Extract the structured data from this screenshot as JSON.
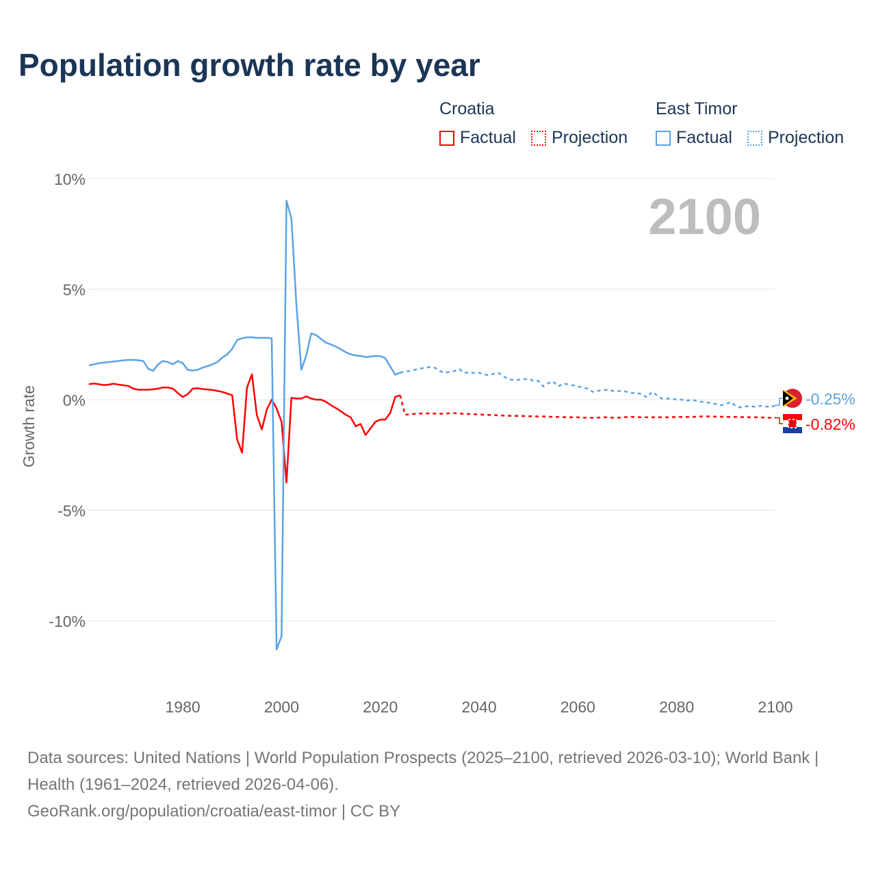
{
  "title": "Population growth rate by year",
  "legend": {
    "groups": [
      {
        "name": "Croatia",
        "color": "#ff0000",
        "factual": "Factual",
        "projection": "Projection"
      },
      {
        "name": "East Timor",
        "color": "#5aa2e6",
        "factual": "Factual",
        "projection": "Projection"
      }
    ]
  },
  "chart_data": {
    "type": "line",
    "title": "Population growth rate by year",
    "xlabel": "",
    "ylabel": "Growth rate",
    "xlim": [
      1961,
      2100
    ],
    "ylim": [
      -12.5,
      10
    ],
    "xticks": [
      1980,
      2000,
      2020,
      2040,
      2060,
      2080,
      2100
    ],
    "yticks": [
      {
        "v": 10,
        "label": "10%"
      },
      {
        "v": 5,
        "label": "5%"
      },
      {
        "v": 0,
        "label": "0%"
      },
      {
        "v": -5,
        "label": "-5%"
      },
      {
        "v": -10,
        "label": "-10%"
      }
    ],
    "grid": true,
    "current_year_label": "2100",
    "series": [
      {
        "name": "Croatia",
        "color": "#ff0000",
        "end_label": "-0.82%",
        "factual_start": 1961,
        "factual": [
          0.7,
          0.73,
          0.7,
          0.66,
          0.68,
          0.72,
          0.68,
          0.65,
          0.62,
          0.5,
          0.45,
          0.45,
          0.45,
          0.47,
          0.5,
          0.55,
          0.55,
          0.5,
          0.3,
          0.12,
          0.25,
          0.5,
          0.52,
          0.48,
          0.46,
          0.44,
          0.4,
          0.35,
          0.28,
          0.2,
          -1.8,
          -2.4,
          0.55,
          1.15,
          -0.7,
          -1.35,
          -0.45,
          0.0,
          -0.4,
          -1.0,
          -3.75,
          0.08,
          0.05,
          0.05,
          0.15,
          0.05,
          0.0,
          0.0,
          -0.1,
          -0.25,
          -0.38,
          -0.52,
          -0.68,
          -0.8,
          -1.2,
          -1.1,
          -1.6,
          -1.3,
          -1.0,
          -0.9,
          -0.9,
          -0.6,
          0.12,
          0.2
        ],
        "projection_start": 2025,
        "projection": [
          -0.68,
          -0.66,
          -0.64,
          -0.63,
          -0.63,
          -0.62,
          -0.63,
          -0.64,
          -0.63,
          -0.62,
          -0.61,
          -0.62,
          -0.65,
          -0.65,
          -0.66,
          -0.67,
          -0.68,
          -0.69,
          -0.7,
          -0.71,
          -0.72,
          -0.73,
          -0.73,
          -0.74,
          -0.74,
          -0.75,
          -0.75,
          -0.76,
          -0.76,
          -0.77,
          -0.78,
          -0.78,
          -0.79,
          -0.8,
          -0.8,
          -0.8,
          -0.81,
          -0.81,
          -0.82,
          -0.81,
          -0.8,
          -0.8,
          -0.81,
          -0.82,
          -0.8,
          -0.79,
          -0.78,
          -0.79,
          -0.8,
          -0.8,
          -0.8,
          -0.8,
          -0.8,
          -0.8,
          -0.79,
          -0.79,
          -0.78,
          -0.78,
          -0.78,
          -0.77,
          -0.76,
          -0.76,
          -0.76,
          -0.77,
          -0.77,
          -0.78,
          -0.78,
          -0.78,
          -0.79,
          -0.79,
          -0.8,
          -0.8,
          -0.8,
          -0.81,
          -0.82,
          -0.82
        ]
      },
      {
        "name": "East Timor",
        "color": "#5aa2e6",
        "end_label": "-0.25%",
        "factual_start": 1961,
        "factual": [
          1.55,
          1.6,
          1.65,
          1.68,
          1.7,
          1.73,
          1.75,
          1.78,
          1.8,
          1.8,
          1.78,
          1.75,
          1.4,
          1.3,
          1.6,
          1.75,
          1.7,
          1.6,
          1.75,
          1.65,
          1.35,
          1.32,
          1.35,
          1.45,
          1.52,
          1.6,
          1.7,
          1.9,
          2.05,
          2.3,
          2.7,
          2.78,
          2.82,
          2.82,
          2.8,
          2.8,
          2.8,
          2.78,
          -11.3,
          -10.7,
          9.0,
          8.2,
          4.3,
          1.35,
          2.0,
          3.0,
          2.92,
          2.75,
          2.58,
          2.5,
          2.4,
          2.28,
          2.15,
          2.05,
          2.0,
          1.98,
          1.93,
          1.95,
          1.98,
          1.97,
          1.88,
          1.5,
          1.13,
          1.22
        ],
        "projection_start": 2025,
        "projection": [
          1.28,
          1.3,
          1.35,
          1.4,
          1.45,
          1.47,
          1.45,
          1.3,
          1.22,
          1.25,
          1.3,
          1.38,
          1.2,
          1.25,
          1.2,
          1.22,
          1.15,
          1.1,
          1.18,
          1.2,
          1.05,
          0.92,
          0.9,
          0.9,
          0.92,
          0.95,
          0.85,
          0.85,
          0.6,
          0.75,
          0.82,
          0.6,
          0.72,
          0.7,
          0.65,
          0.6,
          0.55,
          0.5,
          0.35,
          0.4,
          0.42,
          0.45,
          0.4,
          0.38,
          0.4,
          0.35,
          0.3,
          0.3,
          0.25,
          0.1,
          0.35,
          0.2,
          0.05,
          0.05,
          0.05,
          0.0,
          0.0,
          -0.05,
          0.0,
          -0.05,
          -0.1,
          -0.12,
          -0.15,
          -0.2,
          -0.25,
          -0.2,
          -0.1,
          -0.3,
          -0.35,
          -0.3,
          -0.3,
          -0.32,
          -0.28,
          -0.3,
          -0.35,
          -0.25
        ]
      }
    ]
  },
  "footer": {
    "sources": "Data sources: United Nations | World Population Prospects (2025–2100, retrieved 2026-03-10); World Bank | Health (1961–2024, retrieved 2026-04-06).",
    "credit": "GeoRank.org/population/croatia/east-timor | CC BY"
  }
}
